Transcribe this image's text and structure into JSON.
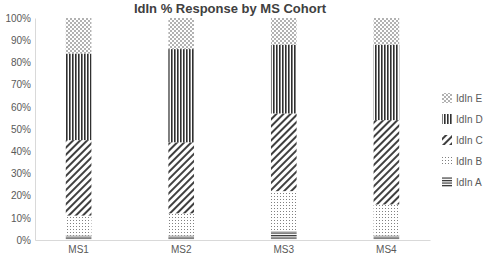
{
  "chart_data": {
    "type": "bar",
    "stacked": true,
    "title": "IdIn % Response by MS Cohort",
    "categories": [
      "MS1",
      "MS2",
      "MS3",
      "MS4"
    ],
    "series": [
      {
        "name": "IdIn A",
        "color": "#303030",
        "values": [
          2,
          2,
          4,
          2
        ]
      },
      {
        "name": "IdIn B",
        "color": "#808080",
        "values": [
          9,
          10,
          18,
          14
        ]
      },
      {
        "name": "IdIn C",
        "color": "#404040",
        "values": [
          34,
          32,
          35,
          38
        ]
      },
      {
        "name": "IdIn D",
        "color": "#303030",
        "values": [
          39,
          42,
          31,
          34
        ]
      },
      {
        "name": "IdIn E",
        "color": "#505050",
        "values": [
          16,
          14,
          12,
          12
        ]
      }
    ],
    "ylim": [
      0,
      100
    ],
    "yticks": [
      {
        "value": 0,
        "label": "0%"
      },
      {
        "value": 10,
        "label": "10%"
      },
      {
        "value": 20,
        "label": "20%"
      },
      {
        "value": 30,
        "label": "30%"
      },
      {
        "value": 40,
        "label": "40%"
      },
      {
        "value": 50,
        "label": "50%"
      },
      {
        "value": 60,
        "label": "60%"
      },
      {
        "value": 70,
        "label": "70%"
      },
      {
        "value": 80,
        "label": "80%"
      },
      {
        "value": 90,
        "label": "90%"
      },
      {
        "value": 100,
        "label": "100%"
      }
    ],
    "grid": false,
    "legend": "right"
  }
}
